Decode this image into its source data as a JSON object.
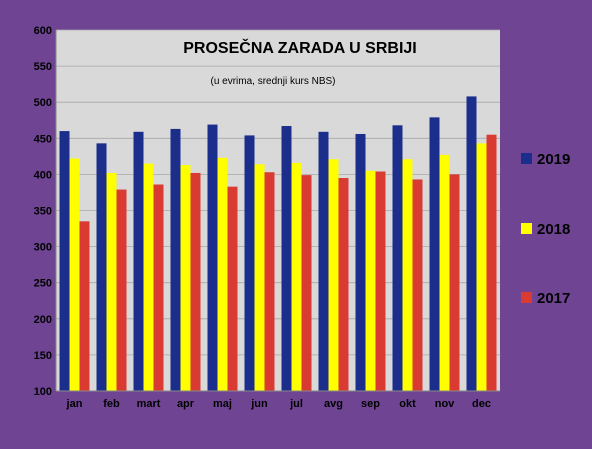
{
  "chart_data": {
    "type": "bar",
    "title": "PROSEČNA ZARADA U SRBIJI",
    "subtitle": "(u evrima, srednji kurs NBS)",
    "categories": [
      "jan",
      "feb",
      "mart",
      "apr",
      "maj",
      "jun",
      "jul",
      "avg",
      "sep",
      "okt",
      "nov",
      "dec"
    ],
    "series": [
      {
        "name": "2019",
        "color": "#1c2e8c",
        "values": [
          460,
          443,
          459,
          463,
          469,
          454,
          467,
          459,
          456,
          468,
          479,
          508
        ]
      },
      {
        "name": "2018",
        "color": "#ffff00",
        "values": [
          422,
          402,
          415,
          413,
          423,
          414,
          416,
          421,
          405,
          421,
          427,
          443
        ]
      },
      {
        "name": "2017",
        "color": "#d93a32",
        "values": [
          335,
          379,
          386,
          402,
          383,
          403,
          399,
          395,
          404,
          393,
          400,
          455
        ]
      }
    ],
    "ylim": [
      100,
      600
    ],
    "yticks": [
      100,
      150,
      200,
      250,
      300,
      350,
      400,
      450,
      500,
      550,
      600
    ],
    "ytick_labels": [
      "100",
      "150",
      "200",
      "250",
      "300",
      "350",
      "400",
      "450",
      "500",
      "550",
      "600"
    ],
    "grid": true,
    "legend_position": "right",
    "plot_background": "#d9d9d9",
    "page_background": "#6f4593"
  }
}
